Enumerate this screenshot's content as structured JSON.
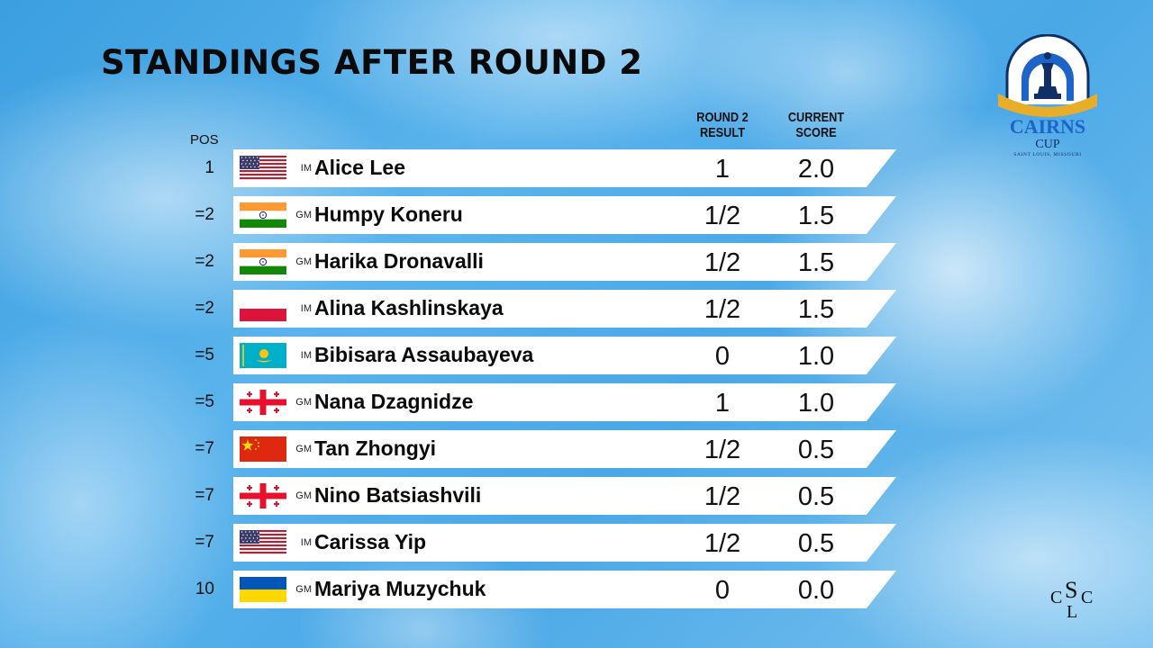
{
  "title": "STANDINGS AFTER ROUND 2",
  "headers": {
    "pos": "POS",
    "round2_line1": "ROUND 2",
    "round2_line2": "RESULT",
    "score_line1": "CURRENT",
    "score_line2": "SCORE"
  },
  "logo": {
    "line1": "CAIRNS",
    "line2": "CUP",
    "line3": "SAINT LOUIS, MISSOURI",
    "club": "CSLC"
  },
  "players": [
    {
      "pos": "1",
      "flag": "usa",
      "title": "IM",
      "name": "Alice Lee",
      "result": "1",
      "score": "2.0"
    },
    {
      "pos": "=2",
      "flag": "india",
      "title": "GM",
      "name": "Humpy Koneru",
      "result": "1/2",
      "score": "1.5"
    },
    {
      "pos": "=2",
      "flag": "india",
      "title": "GM",
      "name": "Harika Dronavalli",
      "result": "1/2",
      "score": "1.5"
    },
    {
      "pos": "=2",
      "flag": "poland",
      "title": "IM",
      "name": "Alina Kashlinskaya",
      "result": "1/2",
      "score": "1.5"
    },
    {
      "pos": "=5",
      "flag": "kazakhstan",
      "title": "IM",
      "name": "Bibisara Assaubayeva",
      "result": "0",
      "score": "1.0"
    },
    {
      "pos": "=5",
      "flag": "georgia",
      "title": "GM",
      "name": "Nana Dzagnidze",
      "result": "1",
      "score": "1.0"
    },
    {
      "pos": "=7",
      "flag": "china",
      "title": "GM",
      "name": "Tan Zhongyi",
      "result": "1/2",
      "score": "0.5"
    },
    {
      "pos": "=7",
      "flag": "georgia",
      "title": "GM",
      "name": "Nino Batsiashvili",
      "result": "1/2",
      "score": "0.5"
    },
    {
      "pos": "=7",
      "flag": "usa",
      "title": "IM",
      "name": "Carissa Yip",
      "result": "1/2",
      "score": "0.5"
    },
    {
      "pos": "10",
      "flag": "ukraine",
      "title": "GM",
      "name": "Mariya Muzychuk",
      "result": "0",
      "score": "0.0"
    }
  ]
}
